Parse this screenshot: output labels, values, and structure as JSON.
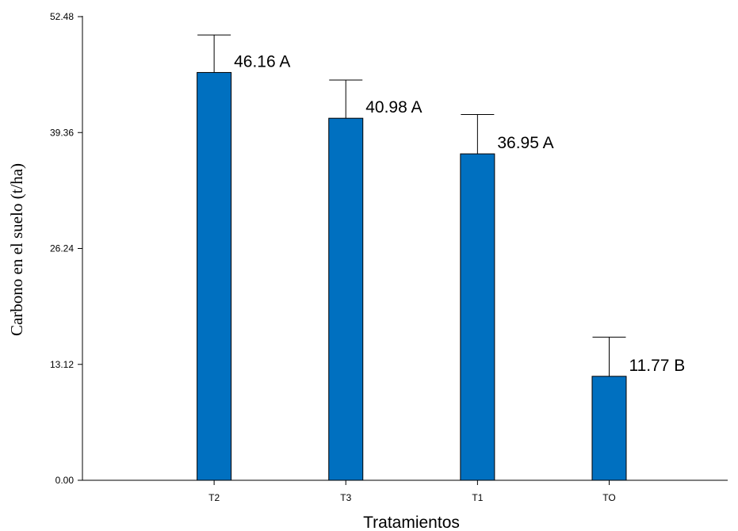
{
  "chart_data": {
    "type": "bar",
    "categories": [
      "T2",
      "T3",
      "T1",
      "TO"
    ],
    "values": [
      46.16,
      40.98,
      36.95,
      11.77
    ],
    "error_upper": [
      50.4,
      45.3,
      41.4,
      16.2
    ],
    "data_labels": [
      "46.16 A",
      "40.98 A",
      "36.95 A",
      "11.77 B"
    ],
    "xlabel": "Tratamientos",
    "ylabel": "Carbono en el suelo (t/ha)",
    "ylim": [
      0,
      52.48
    ],
    "yticks": [
      "0.00",
      "13.12",
      "26.24",
      "39.36",
      "52.48"
    ],
    "grid": false,
    "bar_color": "#0070c0"
  }
}
